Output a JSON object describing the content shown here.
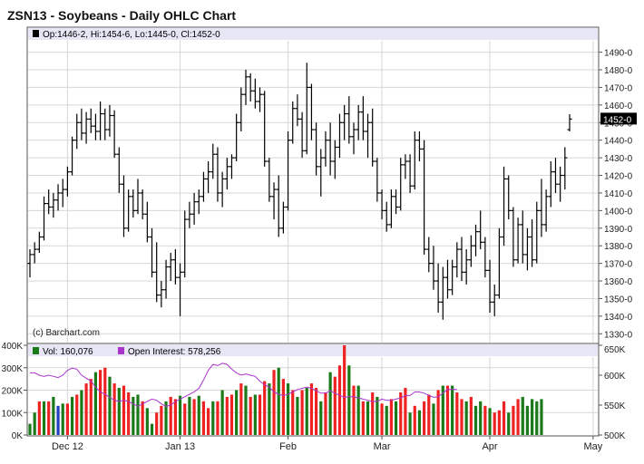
{
  "title": "ZSN13 - Soybeans - Daily OHLC Chart",
  "price_legend": "Op:1446-2, Hi:1454-6, Lo:1445-0, Cl:1452-0",
  "volume_legend": "Vol: 160,076",
  "oi_legend": "Open Interest: 578,256",
  "copyright": "(c) Barchart.com",
  "last_price_label": "1452-0",
  "colors": {
    "legend_bg": "#e6e6f5",
    "bar": "#000000",
    "vol_up": "#1a7a1a",
    "vol_down": "#ee2222",
    "vol_blue": "#1f3fbf",
    "oi_line": "#aa33cc",
    "grid": "#d7d7d7"
  },
  "chart_data": {
    "type": "ohlc",
    "title": "ZSN13 - Soybeans - Daily OHLC Chart",
    "price_axis": {
      "ticks": [
        "1330-0",
        "1340-0",
        "1350-0",
        "1360-0",
        "1370-0",
        "1380-0",
        "1390-0",
        "1400-0",
        "1410-0",
        "1420-0",
        "1430-0",
        "1440-0",
        "1450-0",
        "1460-0",
        "1470-0",
        "1480-0",
        "1490-0"
      ],
      "range": [
        1325,
        1497
      ]
    },
    "volume_axis": {
      "ticks": [
        "0K",
        "100K",
        "200K",
        "300K",
        "400K"
      ],
      "range": [
        0,
        400000
      ]
    },
    "oi_axis": {
      "ticks": [
        "500K",
        "550K",
        "600K",
        "650K"
      ],
      "range": [
        500000,
        650000
      ]
    },
    "x_labels": [
      {
        "label": "Dec 12",
        "index": 8
      },
      {
        "label": "Jan 13",
        "index": 32
      },
      {
        "label": "Feb",
        "index": 55
      },
      {
        "label": "Mar",
        "index": 75
      },
      {
        "label": "Apr",
        "index": 98
      },
      {
        "label": "May",
        "index": 120
      }
    ],
    "ohlc": [
      [
        1370,
        1378,
        1362,
        1375
      ],
      [
        1375,
        1382,
        1370,
        1378
      ],
      [
        1378,
        1388,
        1376,
        1385
      ],
      [
        1385,
        1408,
        1383,
        1404
      ],
      [
        1404,
        1412,
        1398,
        1402
      ],
      [
        1402,
        1410,
        1396,
        1406
      ],
      [
        1406,
        1415,
        1400,
        1410
      ],
      [
        1410,
        1418,
        1402,
        1412
      ],
      [
        1412,
        1425,
        1408,
        1422
      ],
      [
        1422,
        1442,
        1420,
        1440
      ],
      [
        1440,
        1455,
        1435,
        1450
      ],
      [
        1450,
        1458,
        1440,
        1444
      ],
      [
        1444,
        1456,
        1438,
        1452
      ],
      [
        1452,
        1458,
        1444,
        1448
      ],
      [
        1448,
        1455,
        1440,
        1445
      ],
      [
        1445,
        1462,
        1440,
        1455
      ],
      [
        1455,
        1458,
        1440,
        1446
      ],
      [
        1446,
        1460,
        1442,
        1454
      ],
      [
        1454,
        1457,
        1430,
        1432
      ],
      [
        1432,
        1436,
        1410,
        1415
      ],
      [
        1415,
        1420,
        1385,
        1390
      ],
      [
        1390,
        1412,
        1388,
        1408
      ],
      [
        1408,
        1412,
        1396,
        1400
      ],
      [
        1400,
        1418,
        1398,
        1410
      ],
      [
        1410,
        1412,
        1395,
        1398
      ],
      [
        1398,
        1405,
        1382,
        1385
      ],
      [
        1385,
        1390,
        1362,
        1365
      ],
      [
        1365,
        1382,
        1348,
        1352
      ],
      [
        1352,
        1360,
        1345,
        1355
      ],
      [
        1355,
        1372,
        1350,
        1368
      ],
      [
        1368,
        1376,
        1360,
        1372
      ],
      [
        1372,
        1378,
        1358,
        1362
      ],
      [
        1362,
        1370,
        1340,
        1365
      ],
      [
        1365,
        1400,
        1362,
        1395
      ],
      [
        1395,
        1405,
        1390,
        1398
      ],
      [
        1398,
        1410,
        1392,
        1405
      ],
      [
        1405,
        1412,
        1398,
        1408
      ],
      [
        1408,
        1422,
        1405,
        1418
      ],
      [
        1418,
        1428,
        1410,
        1422
      ],
      [
        1422,
        1438,
        1418,
        1432
      ],
      [
        1432,
        1436,
        1405,
        1410
      ],
      [
        1410,
        1422,
        1402,
        1418
      ],
      [
        1418,
        1430,
        1412,
        1425
      ],
      [
        1425,
        1432,
        1418,
        1430
      ],
      [
        1430,
        1455,
        1428,
        1450
      ],
      [
        1450,
        1470,
        1445,
        1466
      ],
      [
        1466,
        1480,
        1460,
        1476
      ],
      [
        1476,
        1478,
        1462,
        1468
      ],
      [
        1468,
        1475,
        1458,
        1462
      ],
      [
        1462,
        1470,
        1456,
        1466
      ],
      [
        1466,
        1468,
        1425,
        1428
      ],
      [
        1428,
        1430,
        1405,
        1408
      ],
      [
        1408,
        1416,
        1395,
        1412
      ],
      [
        1412,
        1420,
        1385,
        1390
      ],
      [
        1390,
        1405,
        1387,
        1402
      ],
      [
        1402,
        1445,
        1400,
        1440
      ],
      [
        1440,
        1462,
        1438,
        1458
      ],
      [
        1458,
        1466,
        1448,
        1452
      ],
      [
        1452,
        1456,
        1430,
        1434
      ],
      [
        1434,
        1484,
        1432,
        1470
      ],
      [
        1470,
        1472,
        1440,
        1446
      ],
      [
        1446,
        1450,
        1420,
        1425
      ],
      [
        1425,
        1435,
        1408,
        1430
      ],
      [
        1430,
        1445,
        1425,
        1440
      ],
      [
        1440,
        1450,
        1420,
        1428
      ],
      [
        1428,
        1440,
        1418,
        1436
      ],
      [
        1436,
        1455,
        1430,
        1450
      ],
      [
        1450,
        1460,
        1440,
        1455
      ],
      [
        1455,
        1465,
        1438,
        1442
      ],
      [
        1442,
        1450,
        1432,
        1446
      ],
      [
        1446,
        1460,
        1440,
        1456
      ],
      [
        1456,
        1465,
        1440,
        1445
      ],
      [
        1445,
        1455,
        1430,
        1450
      ],
      [
        1450,
        1458,
        1425,
        1428
      ],
      [
        1428,
        1430,
        1405,
        1410
      ],
      [
        1410,
        1412,
        1395,
        1400
      ],
      [
        1400,
        1405,
        1388,
        1392
      ],
      [
        1392,
        1412,
        1390,
        1408
      ],
      [
        1408,
        1412,
        1398,
        1402
      ],
      [
        1402,
        1430,
        1400,
        1426
      ],
      [
        1426,
        1432,
        1418,
        1428
      ],
      [
        1428,
        1432,
        1410,
        1414
      ],
      [
        1414,
        1445,
        1412,
        1440
      ],
      [
        1440,
        1445,
        1428,
        1435
      ],
      [
        1435,
        1440,
        1375,
        1378
      ],
      [
        1378,
        1385,
        1365,
        1370
      ],
      [
        1370,
        1380,
        1355,
        1360
      ],
      [
        1360,
        1370,
        1342,
        1348
      ],
      [
        1348,
        1368,
        1338,
        1362
      ],
      [
        1362,
        1372,
        1350,
        1355
      ],
      [
        1355,
        1372,
        1352,
        1368
      ],
      [
        1368,
        1382,
        1362,
        1378
      ],
      [
        1378,
        1385,
        1360,
        1365
      ],
      [
        1365,
        1378,
        1358,
        1372
      ],
      [
        1372,
        1386,
        1368,
        1380
      ],
      [
        1380,
        1392,
        1374,
        1388
      ],
      [
        1388,
        1400,
        1378,
        1382
      ],
      [
        1382,
        1385,
        1362,
        1366
      ],
      [
        1366,
        1372,
        1342,
        1348
      ],
      [
        1348,
        1358,
        1340,
        1352
      ],
      [
        1352,
        1390,
        1350,
        1385
      ],
      [
        1385,
        1425,
        1380,
        1418
      ],
      [
        1418,
        1420,
        1395,
        1400
      ],
      [
        1400,
        1402,
        1368,
        1372
      ],
      [
        1372,
        1396,
        1370,
        1392
      ],
      [
        1392,
        1400,
        1370,
        1375
      ],
      [
        1375,
        1390,
        1366,
        1385
      ],
      [
        1385,
        1395,
        1368,
        1372
      ],
      [
        1372,
        1405,
        1370,
        1400
      ],
      [
        1400,
        1418,
        1385,
        1392
      ],
      [
        1392,
        1412,
        1388,
        1408
      ],
      [
        1408,
        1428,
        1402,
        1422
      ],
      [
        1422,
        1430,
        1410,
        1415
      ],
      [
        1415,
        1425,
        1405,
        1420
      ],
      [
        1420,
        1436,
        1412,
        1430
      ],
      [
        1446,
        1454.75,
        1445,
        1452
      ]
    ],
    "volume_values": [
      50000,
      100000,
      150000,
      150000,
      150000,
      170000,
      130000,
      140000,
      140000,
      170000,
      180000,
      200000,
      230000,
      250000,
      280000,
      290000,
      300000,
      260000,
      230000,
      210000,
      220000,
      190000,
      170000,
      180000,
      150000,
      120000,
      50000,
      100000,
      130000,
      150000,
      170000,
      160000,
      175000,
      140000,
      170000,
      160000,
      175000,
      150000,
      120000,
      150000,
      150000,
      200000,
      170000,
      180000,
      200000,
      230000,
      220000,
      170000,
      180000,
      180000,
      240000,
      230000,
      290000,
      300000,
      250000,
      230000,
      200000,
      170000,
      200000,
      210000,
      230000,
      210000,
      150000,
      190000,
      280000,
      260000,
      310000,
      400000,
      310000,
      220000,
      220000,
      150000,
      150000,
      190000,
      170000,
      140000,
      130000,
      160000,
      150000,
      190000,
      210000,
      100000,
      130000,
      110000,
      150000,
      180000,
      140000,
      200000,
      220000,
      220000,
      220000,
      190000,
      160000,
      150000,
      170000,
      130000,
      150000,
      130000,
      120000,
      100000,
      110000,
      150000,
      100000,
      130000,
      160000,
      170000,
      130000,
      160000,
      150000,
      160000
    ],
    "volume_colors": [
      "g",
      "g",
      "r",
      "g",
      "r",
      "g",
      "b",
      "g",
      "r",
      "g",
      "r",
      "g",
      "r",
      "r",
      "g",
      "r",
      "r",
      "g",
      "r",
      "g",
      "r",
      "r",
      "g",
      "g",
      "r",
      "g",
      "g",
      "r",
      "r",
      "g",
      "r",
      "r",
      "g",
      "r",
      "g",
      "r",
      "g",
      "r",
      "r",
      "g",
      "r",
      "g",
      "r",
      "r",
      "g",
      "r",
      "g",
      "r",
      "g",
      "r",
      "r",
      "g",
      "r",
      "g",
      "r",
      "g",
      "r",
      "g",
      "r",
      "g",
      "r",
      "r",
      "g",
      "r",
      "g",
      "r",
      "r",
      "r",
      "g",
      "r",
      "g",
      "r",
      "g",
      "r",
      "g",
      "r",
      "g",
      "r",
      "g",
      "r",
      "r",
      "g",
      "r",
      "g",
      "r",
      "r",
      "g",
      "r",
      "g",
      "r",
      "g",
      "r",
      "r",
      "g",
      "r",
      "g",
      "g",
      "r",
      "g",
      "r",
      "r",
      "r",
      "g",
      "r",
      "r",
      "g",
      "g",
      "g",
      "g",
      "g"
    ],
    "open_interest": [
      604000,
      604000,
      600000,
      598000,
      600000,
      598000,
      596000,
      600000,
      608000,
      612000,
      610000,
      600000,
      595000,
      590000,
      580000,
      572000,
      568000,
      563000,
      558000,
      556000,
      558000,
      556000,
      552000,
      548000,
      552000,
      556000,
      560000,
      558000,
      552000,
      548000,
      550000,
      556000,
      560000,
      564000,
      568000,
      572000,
      578000,
      592000,
      608000,
      618000,
      616000,
      620000,
      618000,
      610000,
      604000,
      600000,
      602000,
      600000,
      598000,
      590000,
      584000,
      580000,
      572000,
      568000,
      566000,
      568000,
      572000,
      576000,
      578000,
      580000,
      578000,
      574000,
      570000,
      570000,
      574000,
      570000,
      566000,
      563000,
      564000,
      564000,
      562000,
      560000,
      558000,
      556000,
      556000,
      560000,
      558000,
      558000,
      560000,
      562000,
      566000,
      566000,
      572000,
      572000,
      570000,
      566000,
      563000,
      564000,
      570000,
      576000,
      576000,
      576000
    ],
    "last_price": "1452-0"
  }
}
